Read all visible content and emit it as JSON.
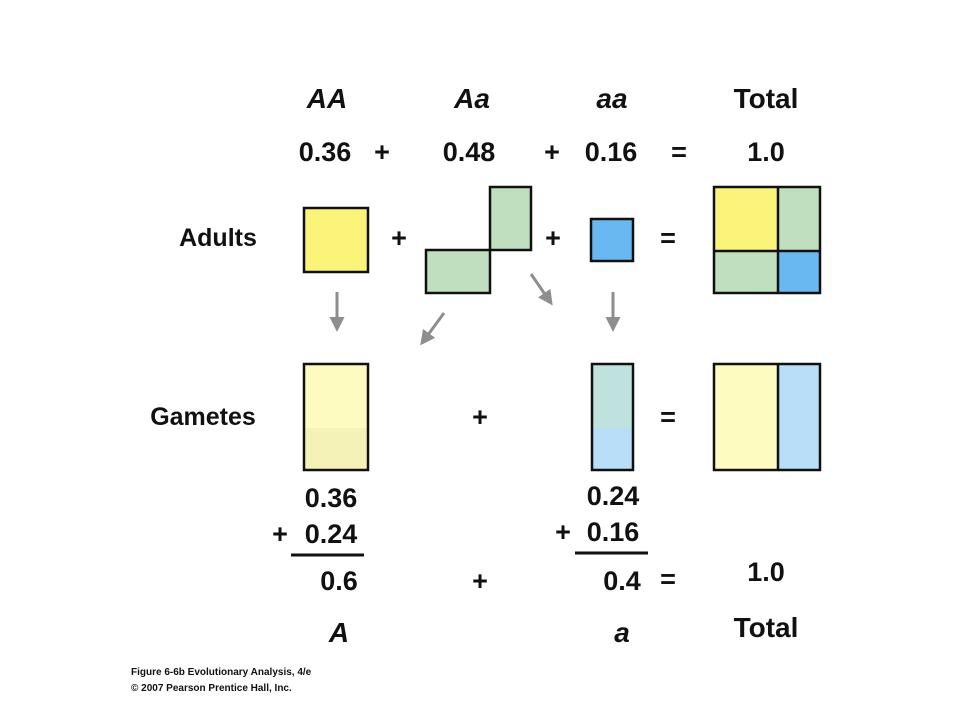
{
  "header": {
    "genotypes": [
      "AA",
      "Aa",
      "aa"
    ],
    "total_label": "Total"
  },
  "frequencies": {
    "AA": "0.36",
    "Aa": "0.48",
    "aa": "0.16",
    "total": "1.0"
  },
  "rows": {
    "adults_label": "Adults",
    "gametes_label": "Gametes"
  },
  "operators": {
    "plus": "+",
    "equals": "="
  },
  "allele_sums": {
    "A": {
      "first": "0.36",
      "second": "0.24",
      "result": "0.6",
      "allele": "A"
    },
    "a": {
      "first": "0.24",
      "second": "0.16",
      "result": "0.4",
      "allele": "a"
    },
    "total_value": "1.0",
    "total_label": "Total"
  },
  "caption": {
    "line1": "Figure 6-6b  Evolutionary Analysis, 4/e",
    "line2": "© 2007 Pearson Prentice Hall, Inc."
  },
  "colors": {
    "AA_yellow": "#fbf47a",
    "Aa_green": "#bfdfbf",
    "aa_blue": "#6ab8f2",
    "gamete_A_light": "#fdfbc0",
    "gamete_A_dark": "#f5f2b8",
    "gamete_a_green": "#bfe2de",
    "gamete_a_blue": "#b8def8",
    "arrow_gray": "#8e8e8e"
  }
}
